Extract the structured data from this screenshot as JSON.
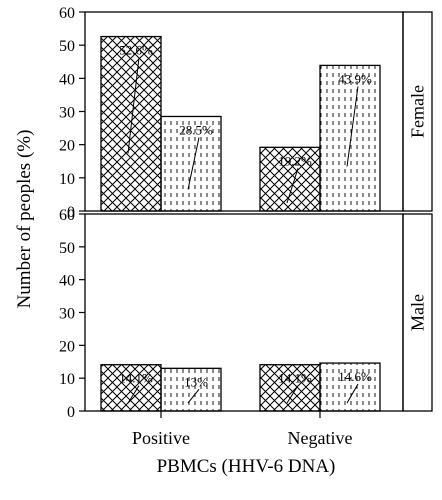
{
  "chart_data": {
    "type": "bar",
    "categories": [
      "Positive",
      "Negative"
    ],
    "xlabel": "PBMCs (HHV-6 DNA)",
    "ylabel": "Number of peoples (%)",
    "ylim": [
      0,
      60
    ],
    "yticks": [
      0,
      10,
      20,
      30,
      40,
      50,
      60
    ],
    "facets": [
      {
        "strip": "Female",
        "series": [
          {
            "pattern": "crosshatch",
            "values": [
              52.6,
              19.2
            ],
            "labels": [
              "52.6%",
              "19.2%"
            ]
          },
          {
            "pattern": "dashes",
            "values": [
              28.5,
              43.9
            ],
            "labels": [
              "28.5%",
              "43.9%"
            ]
          }
        ]
      },
      {
        "strip": "Male",
        "series": [
          {
            "pattern": "crosshatch",
            "values": [
              14.1,
              14.1
            ],
            "labels": [
              "14.1%",
              "14.1%"
            ]
          },
          {
            "pattern": "dashes",
            "values": [
              13,
              14.6
            ],
            "labels": [
              "13%",
              "14.6%"
            ]
          }
        ]
      }
    ],
    "colors": {
      "stroke": "#000000",
      "fill": "#ffffff"
    }
  }
}
